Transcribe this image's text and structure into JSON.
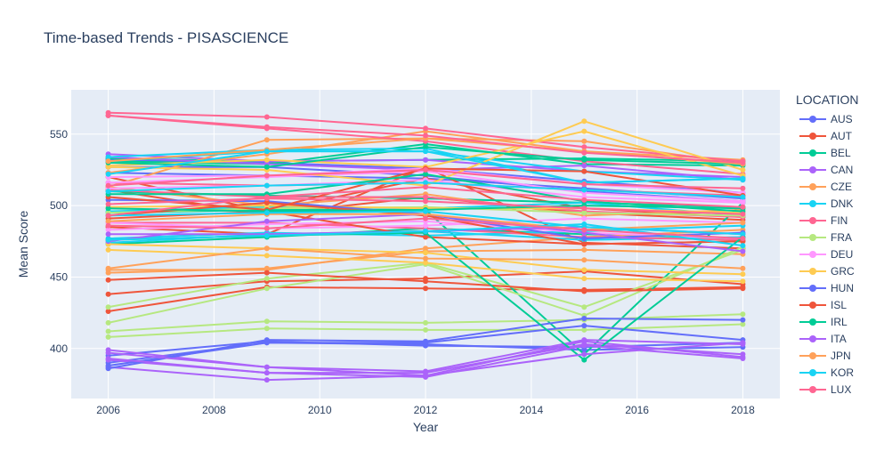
{
  "chart_data": {
    "type": "line",
    "title": "Time-based Trends - PISASCIENCE",
    "xlabel": "Year",
    "ylabel": "Mean Score",
    "xlim": [
      2005.3,
      2018.7
    ],
    "ylim": [
      365,
      581
    ],
    "x_ticks": [
      2006,
      2008,
      2010,
      2012,
      2014,
      2016,
      2018
    ],
    "y_ticks": [
      400,
      450,
      500,
      550
    ],
    "grid": true,
    "legend_title": "LOCATION",
    "legend_position": "right",
    "x": [
      2006,
      2009,
      2012,
      2015,
      2018
    ],
    "series": [
      {
        "name": "AUS",
        "color": "#636efa",
        "lines": [
          [
            527,
            527,
            521,
            510,
            503
          ],
          [
            523,
            521,
            519,
            512,
            505
          ],
          [
            532,
            530,
            526,
            517,
            509
          ],
          [
            395,
            405,
            402,
            401,
            404
          ],
          [
            390,
            404,
            403,
            399,
            401
          ]
        ]
      },
      {
        "name": "AUT",
        "color": "#EF553B",
        "lines": [
          [
            511,
            494,
            506,
            495,
            490
          ],
          [
            438,
            447,
            449,
            454,
            445
          ],
          [
            426,
            443,
            442,
            441,
            443
          ],
          [
            485,
            480,
            527,
            474,
            470
          ],
          [
            520,
            496,
            519,
            498,
            492
          ]
        ]
      },
      {
        "name": "BEL",
        "color": "#00cc96",
        "lines": [
          [
            510,
            507,
            505,
            502,
            499
          ],
          [
            473,
            478,
            484,
            480,
            477
          ],
          [
            531,
            529,
            543,
            529,
            528
          ],
          [
            495,
            497,
            497,
            396,
            502
          ],
          [
            533,
            531,
            532,
            533,
            531
          ]
        ]
      },
      {
        "name": "CAN",
        "color": "#ab63fa",
        "lines": [
          [
            534,
            529,
            525,
            528,
            518
          ],
          [
            536,
            531,
            532,
            524,
            520
          ],
          [
            387,
            378,
            381,
            405,
            394
          ],
          [
            392,
            383,
            383,
            403,
            396
          ],
          [
            399,
            387,
            384,
            406,
            403
          ]
        ]
      },
      {
        "name": "CZE",
        "color": "#FFA15A",
        "lines": [
          [
            513,
            500,
            508,
            493,
            497
          ],
          [
            455,
            455,
            470,
            478,
            483
          ],
          [
            453,
            456,
            468,
            469,
            466
          ],
          [
            513,
            546,
            547,
            545,
            529
          ],
          [
            523,
            536,
            552,
            538,
            532
          ]
        ]
      },
      {
        "name": "DNK",
        "color": "#19d3f3",
        "lines": [
          [
            496,
            499,
            498,
            502,
            493
          ],
          [
            477,
            481,
            479,
            482,
            486
          ],
          [
            474,
            480,
            482,
            476,
            478
          ],
          [
            534,
            539,
            540,
            516,
            519
          ],
          [
            531,
            538,
            538,
            524,
            518
          ]
        ]
      },
      {
        "name": "FIN",
        "color": "#FF6692",
        "lines": [
          [
            563,
            554,
            545,
            531,
            522
          ],
          [
            565,
            562,
            554,
            541,
            531
          ],
          [
            516,
            514,
            516,
            511,
            507
          ],
          [
            488,
            488,
            484,
            478,
            476
          ],
          [
            511,
            506,
            506,
            496,
            492
          ]
        ]
      },
      {
        "name": "FRA",
        "color": "#B6E880",
        "lines": [
          [
            495,
            498,
            499,
            495,
            493
          ],
          [
            418,
            442,
            459,
            423,
            471
          ],
          [
            429,
            449,
            460,
            429,
            469
          ],
          [
            412,
            419,
            418,
            420,
            424
          ],
          [
            408,
            414,
            413,
            413,
            417
          ]
        ]
      },
      {
        "name": "DEU",
        "color": "#FF97FF",
        "lines": [
          [
            516,
            520,
            524,
            509,
            503
          ],
          [
            488,
            484,
            486,
            491,
            488
          ],
          [
            483,
            487,
            489,
            481,
            477
          ],
          [
            512,
            514,
            518,
            506,
            502
          ],
          [
            520,
            521,
            526,
            515,
            509
          ]
        ]
      },
      {
        "name": "GRC",
        "color": "#FECB52",
        "lines": [
          [
            473,
            470,
            467,
            455,
            452
          ],
          [
            469,
            465,
            460,
            449,
            447
          ],
          [
            499,
            500,
            498,
            498,
            495
          ],
          [
            527,
            525,
            514,
            559,
            525
          ],
          [
            528,
            532,
            527,
            552,
            521
          ]
        ]
      },
      {
        "name": "HUN",
        "color": "#636efa",
        "lines": [
          [
            504,
            503,
            494,
            477,
            481
          ],
          [
            386,
            406,
            405,
            421,
            420
          ],
          [
            388,
            404,
            404,
            416,
            406
          ]
        ]
      },
      {
        "name": "ISL",
        "color": "#EF553B",
        "lines": [
          [
            491,
            496,
            478,
            473,
            475
          ],
          [
            448,
            453,
            447,
            440,
            442
          ],
          [
            506,
            497,
            526,
            524,
            507
          ],
          [
            493,
            502,
            493,
            473,
            475
          ]
        ]
      },
      {
        "name": "IRL",
        "color": "#00cc96",
        "lines": [
          [
            508,
            508,
            522,
            503,
            496
          ],
          [
            498,
            496,
            497,
            500,
            498
          ],
          [
            530,
            527,
            541,
            532,
            529
          ],
          [
            476,
            479,
            481,
            392,
            478
          ]
        ]
      },
      {
        "name": "ITA",
        "color": "#ab63fa",
        "lines": [
          [
            475,
            489,
            494,
            481,
            468
          ],
          [
            480,
            480,
            482,
            485,
            480
          ],
          [
            393,
            383,
            380,
            402,
            393
          ],
          [
            397,
            387,
            381,
            396,
            404
          ]
        ]
      },
      {
        "name": "JPN",
        "color": "#FFA15A",
        "lines": [
          [
            531,
            539,
            547,
            538,
            529
          ],
          [
            456,
            470,
            463,
            462,
            456
          ],
          [
            489,
            494,
            494,
            483,
            488
          ]
        ]
      },
      {
        "name": "KOR",
        "color": "#19d3f3",
        "lines": [
          [
            522,
            538,
            538,
            516,
            519
          ],
          [
            510,
            514,
            516,
            511,
            506
          ],
          [
            493,
            495,
            496,
            485,
            480
          ],
          [
            476,
            479,
            482,
            487,
            472
          ]
        ]
      },
      {
        "name": "LUX",
        "color": "#FF6692",
        "lines": [
          [
            486,
            484,
            491,
            483,
            477
          ],
          [
            514,
            521,
            525,
            515,
            512
          ],
          [
            501,
            505,
            503,
            498,
            494
          ],
          [
            563,
            555,
            549,
            537,
            530
          ],
          [
            493,
            506,
            513,
            504,
            499
          ]
        ]
      }
    ]
  }
}
